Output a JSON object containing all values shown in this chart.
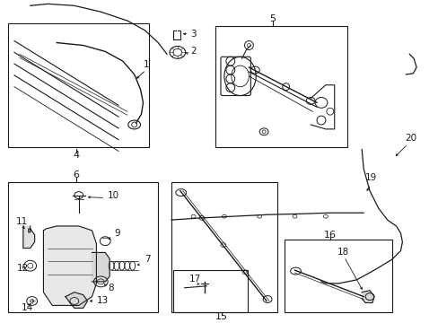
{
  "background_color": "#ffffff",
  "fig_width": 4.89,
  "fig_height": 3.6,
  "dpi": 100,
  "line_color": "#1a1a1a",
  "font_size": 7.0
}
